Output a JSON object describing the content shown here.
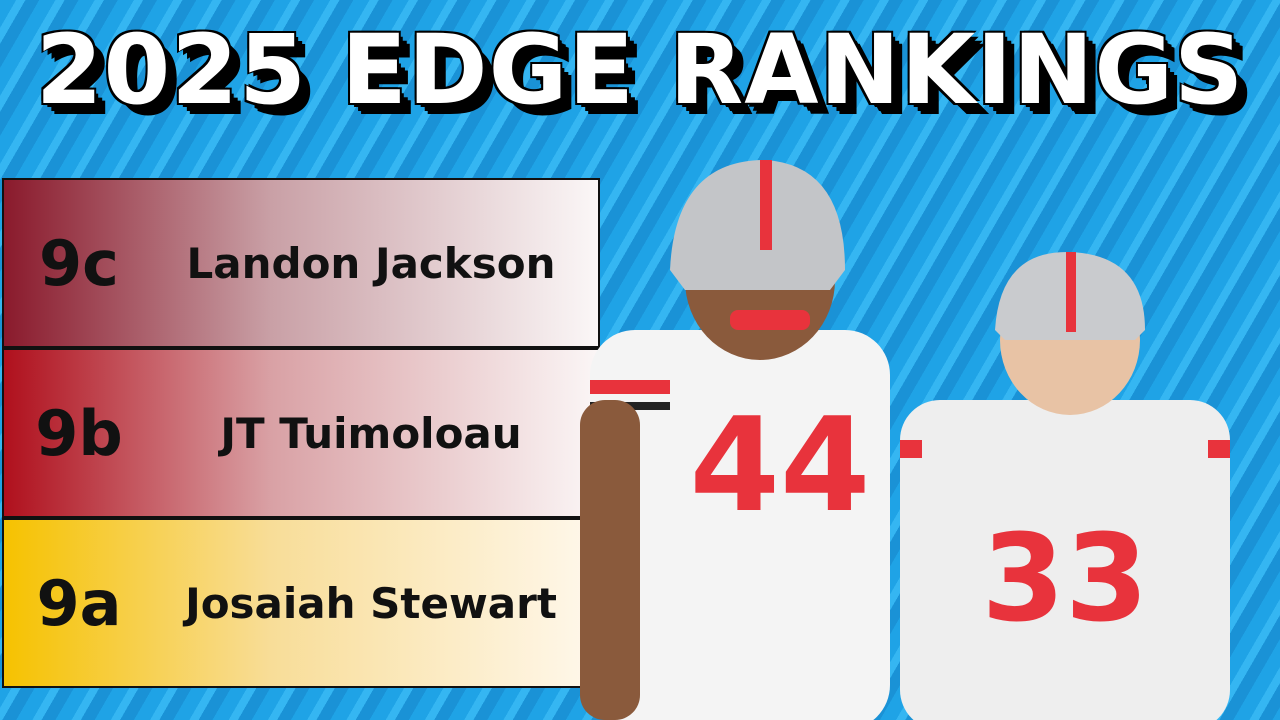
{
  "header": {
    "title": "2025 EDGE RANKINGS"
  },
  "table": {
    "rows": [
      {
        "tier": "9c",
        "name": "Landon Jackson"
      },
      {
        "tier": "9b",
        "name": "JT Tuimoloau"
      },
      {
        "tier": "9a",
        "name": "Josaiah Stewart"
      }
    ]
  },
  "players": [
    {
      "number": "44"
    },
    {
      "number": "33"
    }
  ]
}
